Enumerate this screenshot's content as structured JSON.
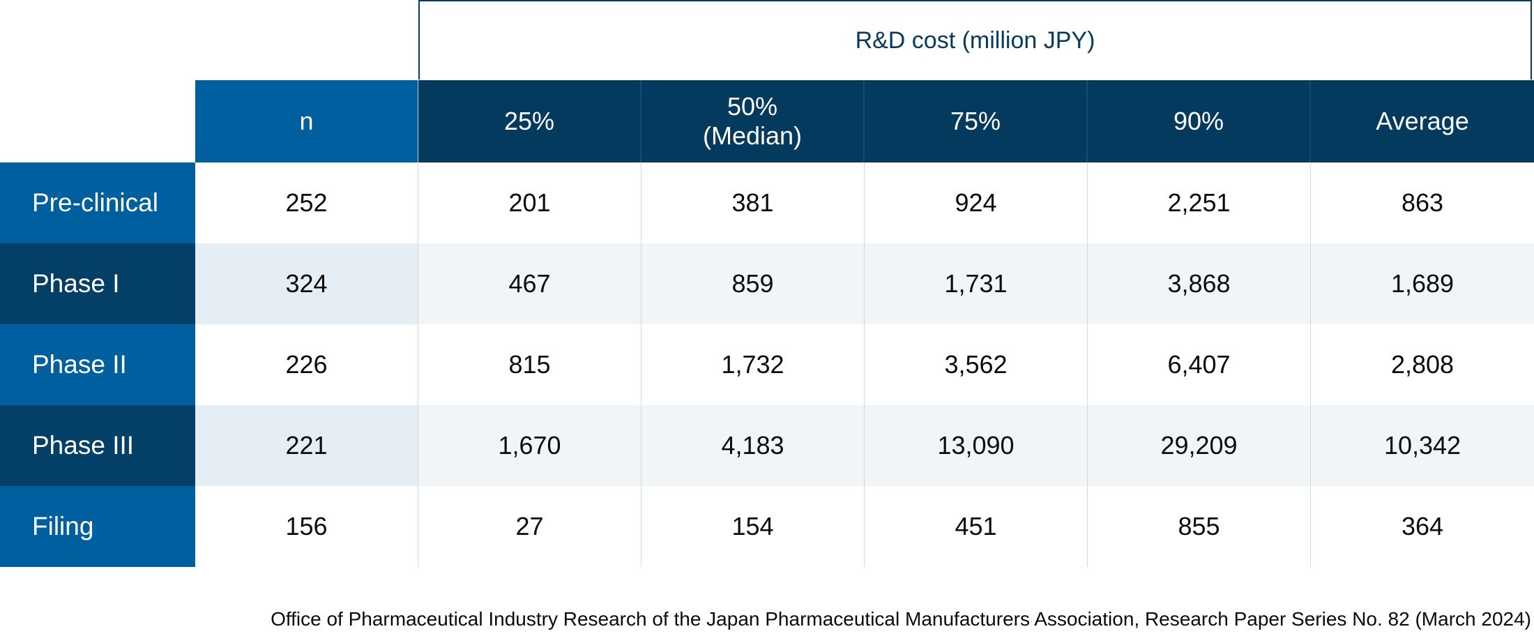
{
  "chart_data": {
    "type": "table",
    "group_header": "R&D cost (million JPY)",
    "columns": [
      "n",
      "25%",
      "50%\n(Median)",
      "75%",
      "90%",
      "Average"
    ],
    "rows": [
      {
        "label": "Pre-clinical",
        "values": [
          "252",
          "201",
          "381",
          "924",
          "2,251",
          "863"
        ]
      },
      {
        "label": "Phase I",
        "values": [
          "324",
          "467",
          "859",
          "1,731",
          "3,868",
          "1,689"
        ]
      },
      {
        "label": "Phase II",
        "values": [
          "226",
          "815",
          "1,732",
          "3,562",
          "6,407",
          "2,808"
        ]
      },
      {
        "label": "Phase III",
        "values": [
          "221",
          "1,670",
          "4,183",
          "13,090",
          "29,209",
          "10,342"
        ]
      },
      {
        "label": "Filing",
        "values": [
          "156",
          "27",
          "154",
          "451",
          "855",
          "364"
        ]
      }
    ]
  },
  "source": "Office of Pharmaceutical Industry Research of the Japan Pharmaceutical Manufacturers Association, Research Paper Series No. 82 (March 2024)",
  "colors": {
    "dark_header": "#033a5e",
    "blue_header": "#00609f",
    "row_dark": "#033f67",
    "row_light": "#00609f"
  }
}
